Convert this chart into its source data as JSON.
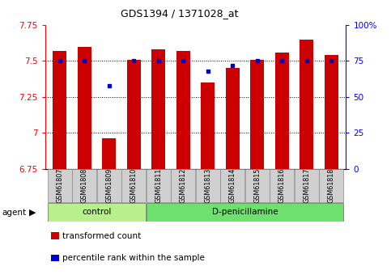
{
  "title": "GDS1394 / 1371028_at",
  "samples": [
    "GSM61807",
    "GSM61808",
    "GSM61809",
    "GSM61810",
    "GSM61811",
    "GSM61812",
    "GSM61813",
    "GSM61814",
    "GSM61815",
    "GSM61816",
    "GSM61817",
    "GSM61818"
  ],
  "red_values": [
    7.57,
    7.6,
    6.96,
    7.51,
    7.58,
    7.57,
    7.35,
    7.45,
    7.51,
    7.56,
    7.65,
    7.54
  ],
  "blue_values": [
    75,
    75,
    58,
    75,
    75,
    75,
    68,
    72,
    75,
    75,
    75,
    75
  ],
  "ylim_left": [
    6.75,
    7.75
  ],
  "ylim_right": [
    0,
    100
  ],
  "yticks_left": [
    6.75,
    7.0,
    7.25,
    7.5,
    7.75
  ],
  "ytick_labels_left": [
    "6.75",
    "7",
    "7.25",
    "7.5",
    "7.75"
  ],
  "yticks_right": [
    0,
    25,
    50,
    75,
    100
  ],
  "ytick_labels_right": [
    "0",
    "25",
    "50",
    "75",
    "100%"
  ],
  "hlines": [
    7.5,
    7.25,
    7.0
  ],
  "control_indices": [
    0,
    1,
    2,
    3
  ],
  "dpenicillamine_indices": [
    4,
    5,
    6,
    7,
    8,
    9,
    10,
    11
  ],
  "control_label": "control",
  "treatment_label": "D-penicillamine",
  "bar_color": "#cc0000",
  "dot_color": "#0000cc",
  "control_bg": "#b8f08c",
  "treatment_bg": "#6ee06e",
  "sample_bg": "#d0d0d0",
  "bar_width": 0.55,
  "legend_red_label": "transformed count",
  "legend_blue_label": "percentile rank within the sample",
  "agent_label": "agent"
}
